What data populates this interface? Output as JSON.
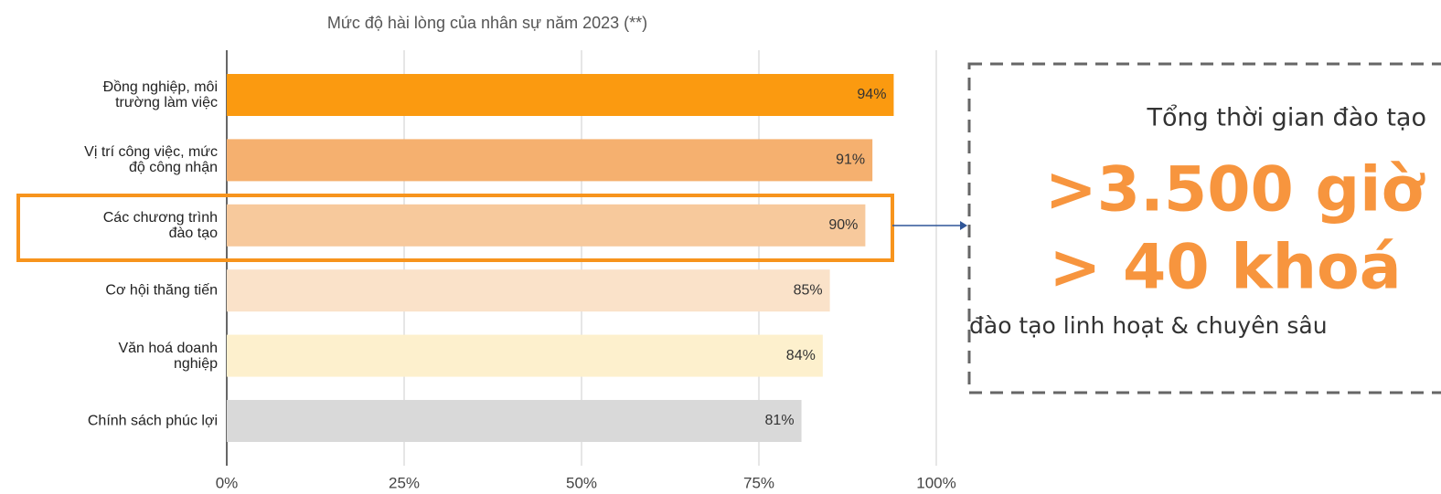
{
  "chart_data": {
    "type": "barh",
    "title": "Mức độ hài lòng của nhân sự năm 2023 (**)",
    "categories": [
      "Đồng nghiệp, môi\ntrường làm việc",
      "Vị trí công việc, mức\nđộ công nhận",
      "Các chương trình\nđào tạo",
      "Cơ hội thăng tiến",
      "Văn hoá doanh\nnghiệp",
      "Chính sách phúc lợi"
    ],
    "values": [
      94,
      91,
      90,
      85,
      84,
      81
    ],
    "value_labels": [
      "94%",
      "91%",
      "90%",
      "85%",
      "84%",
      "81%"
    ],
    "colors": [
      "#fb9a10",
      "#f5b06f",
      "#f7c99c",
      "#fae2c9",
      "#fdf0cd",
      "#d9d9d9"
    ],
    "xlim": [
      0,
      100
    ],
    "xticks": [
      {
        "value": 0,
        "label": "0%"
      },
      {
        "value": 25,
        "label": "25%"
      },
      {
        "value": 50,
        "label": "50%"
      },
      {
        "value": 75,
        "label": "75%"
      },
      {
        "value": 100,
        "label": "100%"
      }
    ],
    "grid": true
  },
  "callout": {
    "heading": "Tổng thời gian đào tạo",
    "hours": ">3.500 giờ",
    "courses": "> 40 khoá",
    "note": "đào tạo linh hoạt & chuyên sâu"
  }
}
